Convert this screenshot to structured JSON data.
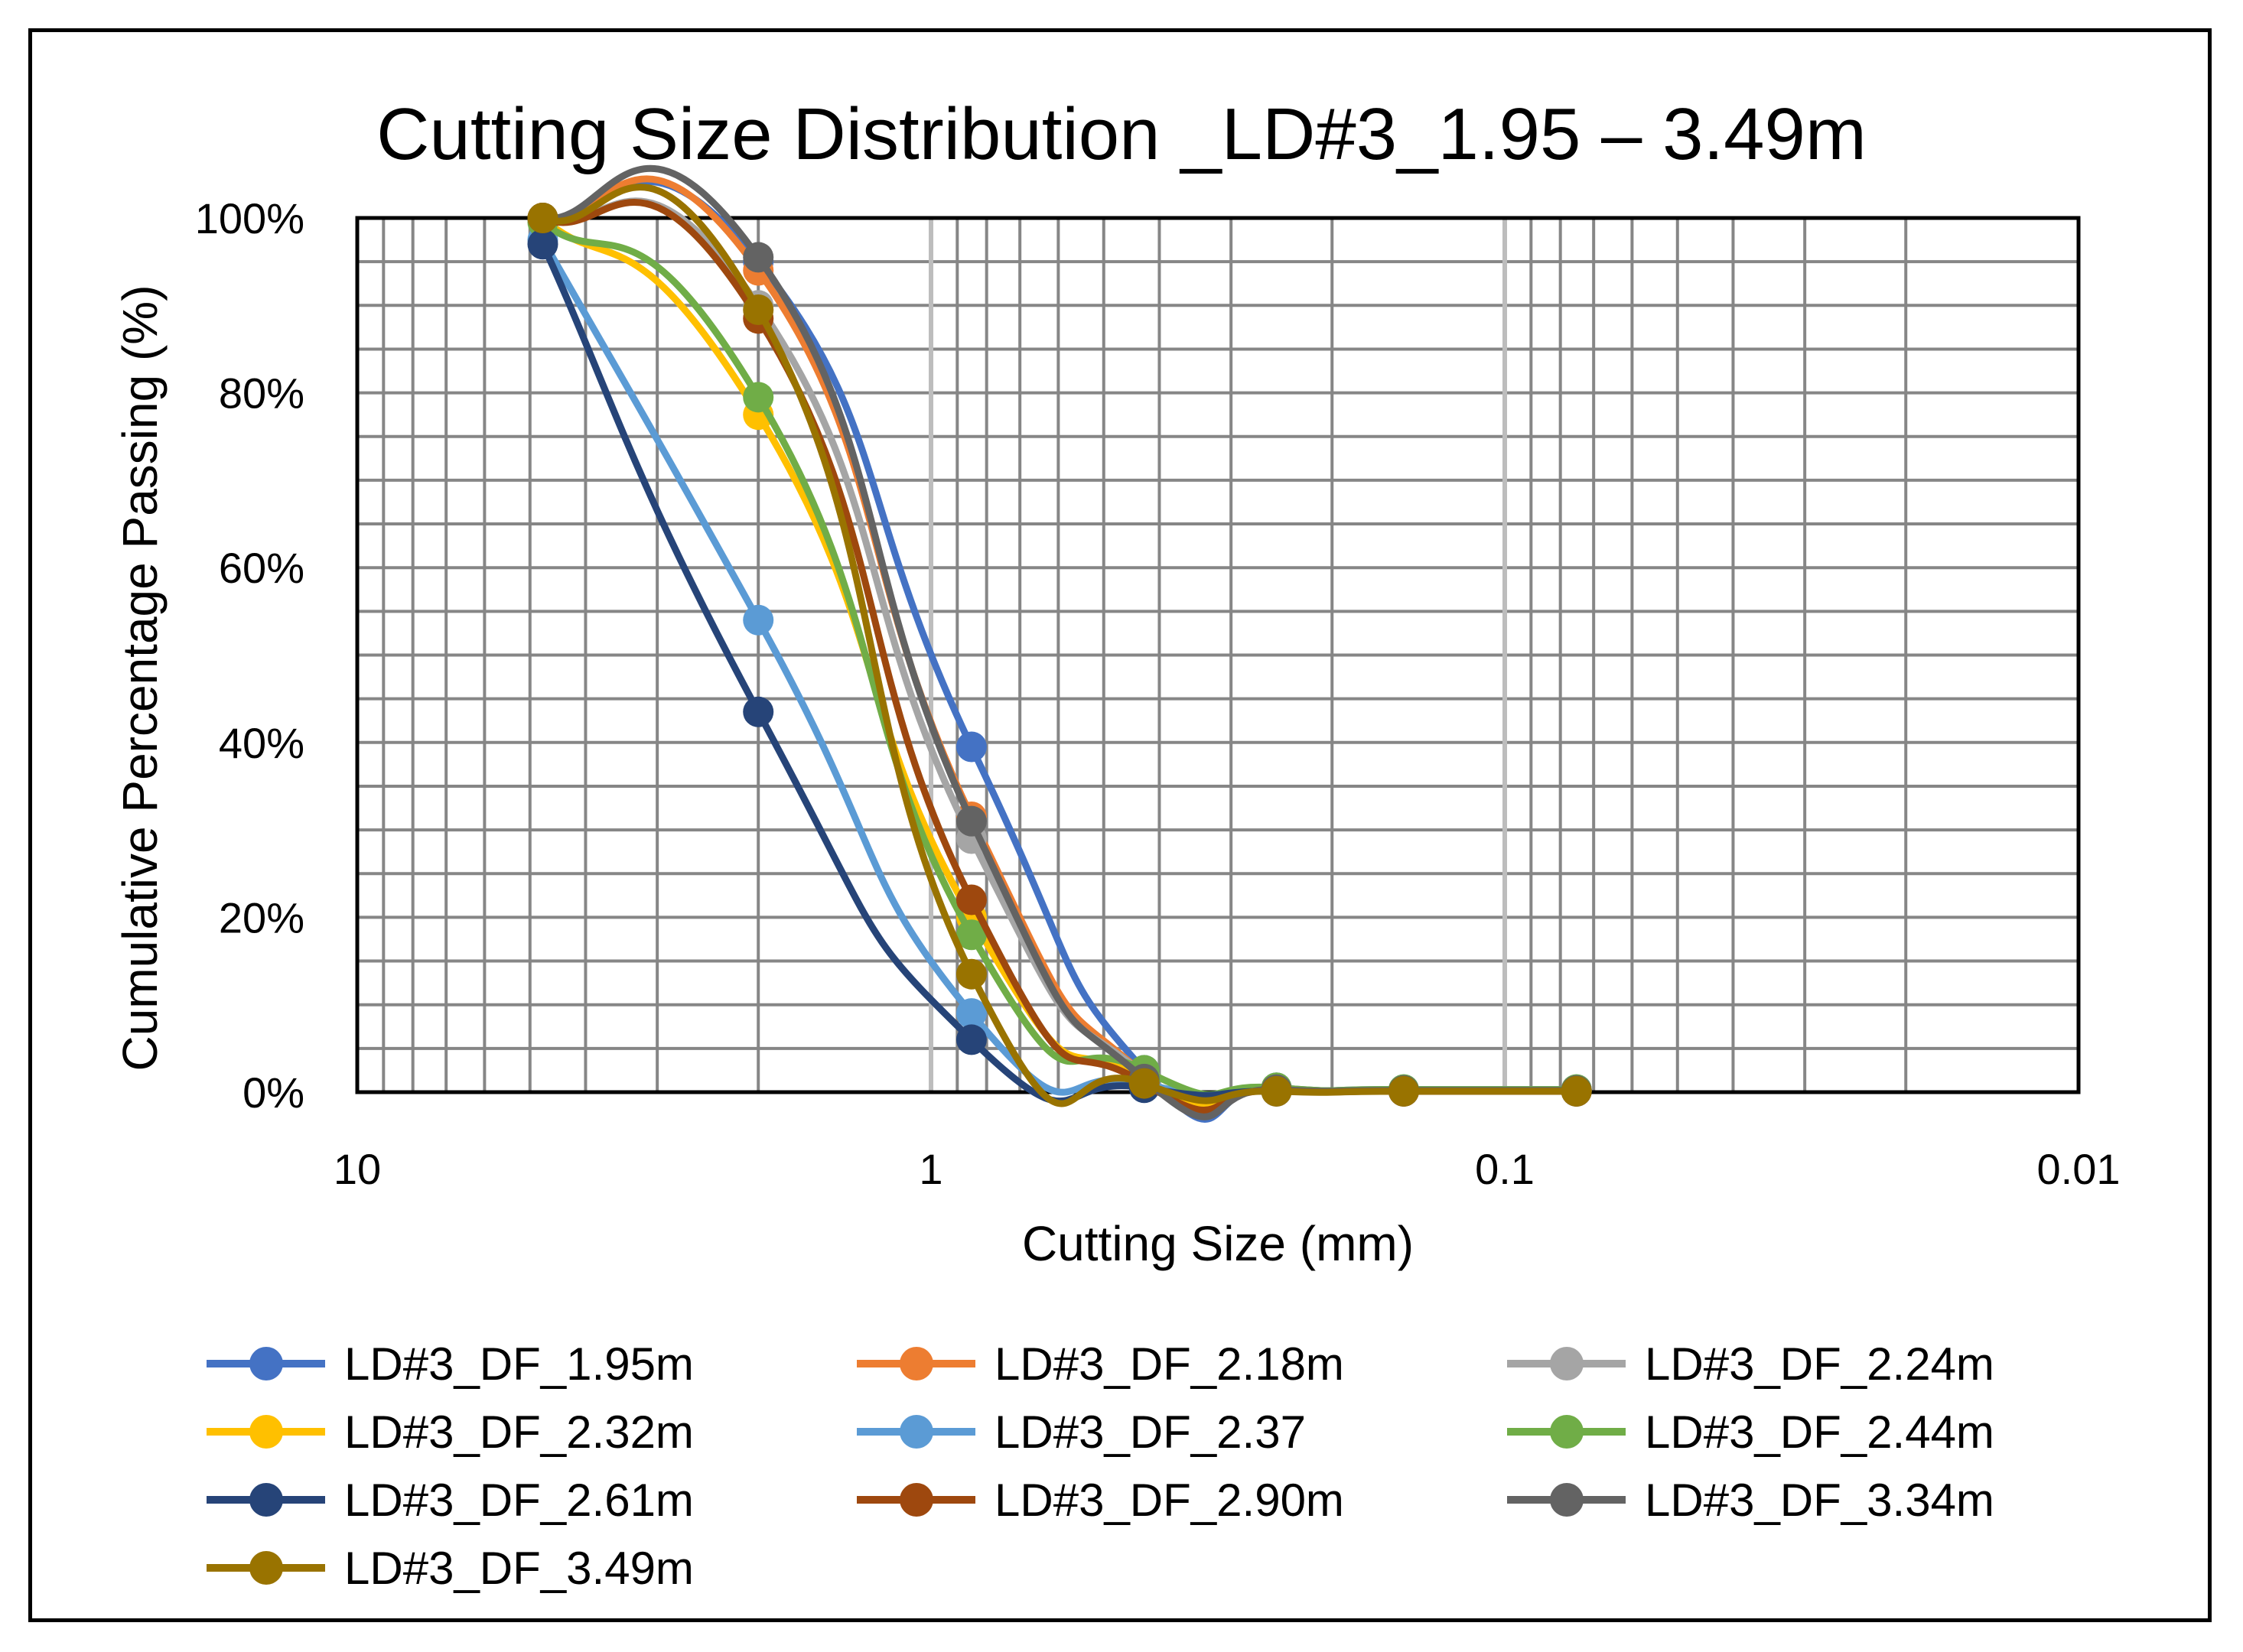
{
  "chart_data": {
    "type": "line",
    "title": "Cutting Size Distribution _LD#3_1.95 – 3.49m",
    "xlabel": "Cutting Size (mm)",
    "ylabel": "Cumulative Percentage Passing (%)",
    "x_scale": "log",
    "x_reversed": true,
    "xlim": [
      10,
      0.01
    ],
    "ylim": [
      0,
      100
    ],
    "x_ticks": [
      10,
      1,
      0.1,
      0.01
    ],
    "x_tick_labels": [
      "10",
      "1",
      "0.1",
      "0.01"
    ],
    "y_ticks": [
      0,
      20,
      40,
      60,
      80,
      100
    ],
    "y_tick_labels": [
      "0%",
      "20%",
      "40%",
      "60%",
      "80%",
      "100%"
    ],
    "grid": true,
    "legend_position": "bottom",
    "x": [
      4.75,
      2.0,
      0.85,
      0.425,
      0.25,
      0.15,
      0.075
    ],
    "series": [
      {
        "name": "LD#3_DF_1.95m",
        "color": "#4472C4",
        "values": [
          100,
          95,
          39.5,
          2.5,
          0.5,
          0.3,
          0.3
        ]
      },
      {
        "name": "LD#3_DF_2.18m",
        "color": "#ED7D31",
        "values": [
          100,
          94,
          31.5,
          2,
          0.3,
          0.2,
          0.2
        ]
      },
      {
        "name": "LD#3_DF_2.24m",
        "color": "#A5A5A5",
        "values": [
          100,
          90,
          29,
          2,
          0.3,
          0.2,
          0.2
        ]
      },
      {
        "name": "LD#3_DF_2.32m",
        "color": "#FFC000",
        "values": [
          100,
          77.5,
          20,
          1.5,
          0.3,
          0.2,
          0.2
        ]
      },
      {
        "name": "LD#3_DF_2.37",
        "color": "#5B9BD5",
        "values": [
          97.5,
          54,
          9,
          1,
          0.2,
          0.1,
          0.1
        ]
      },
      {
        "name": "LD#3_DF_2.44m",
        "color": "#70AD47",
        "values": [
          99.5,
          79.5,
          18,
          2.5,
          0.5,
          0.3,
          0.3
        ]
      },
      {
        "name": "LD#3_DF_2.61m",
        "color": "#264478",
        "values": [
          97,
          43.5,
          6,
          0.5,
          0.1,
          0.1,
          0.1
        ]
      },
      {
        "name": "LD#3_DF_2.90m",
        "color": "#9E480E",
        "values": [
          100,
          88.5,
          22,
          1,
          0.2,
          0.1,
          0.1
        ]
      },
      {
        "name": "LD#3_DF_3.34m",
        "color": "#636363",
        "values": [
          100,
          95.5,
          31,
          1.5,
          0.3,
          0.2,
          0.2
        ]
      },
      {
        "name": "LD#3_DF_3.49m",
        "color": "#997300",
        "values": [
          100,
          89.5,
          13.5,
          1,
          0.1,
          0.1,
          0.1
        ]
      }
    ]
  }
}
